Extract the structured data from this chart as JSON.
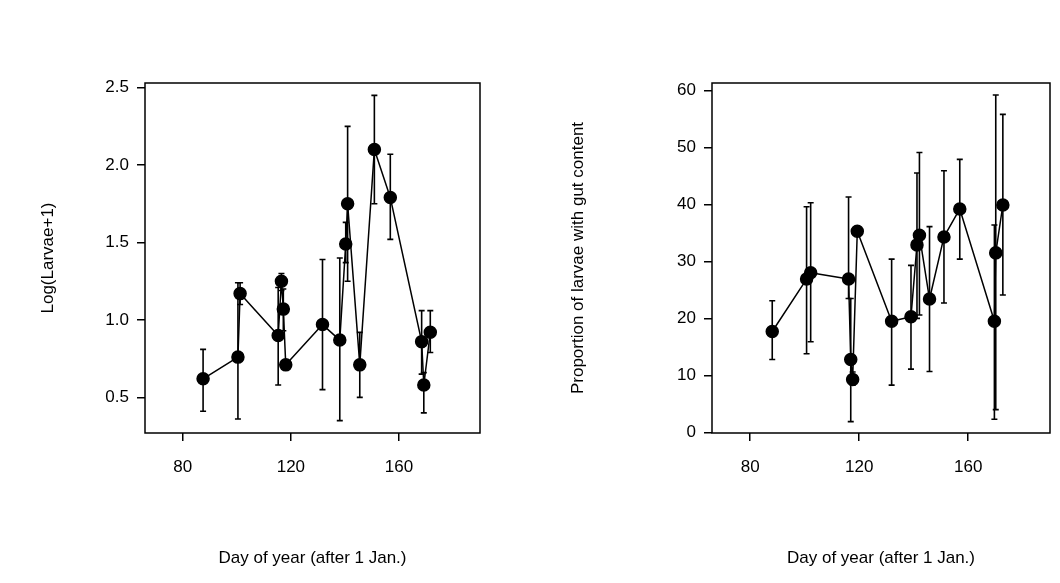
{
  "chart_data": [
    {
      "type": "line",
      "xlabel": "Day of year (after 1 Jan.)",
      "ylabel": "Log(Larvae+1)",
      "xlim": [
        66,
        190
      ],
      "xticks": [
        80,
        120,
        160
      ],
      "ylim": [
        0.27,
        2.53
      ],
      "yticks": [
        {
          "value": 0.5,
          "label": "0.5"
        },
        {
          "value": 1,
          "label": "1.0"
        },
        {
          "value": 1.5,
          "label": "1.5"
        },
        {
          "value": 2,
          "label": "2.0"
        },
        {
          "value": 2.5,
          "label": "2.5"
        }
      ],
      "grid": false,
      "legend": false,
      "marker": "circle",
      "line_style": "solid",
      "series": [
        {
          "color": "#000000",
          "x": [
            87.5,
            100.4,
            101.2,
            115.3,
            116.5,
            117.2,
            118.1,
            131.7,
            138.1,
            140.3,
            141,
            145.5,
            150.9,
            156.8,
            168.4,
            169.2,
            171.6
          ],
          "values": [
            0.62,
            0.76,
            1.17,
            0.9,
            1.25,
            1.07,
            0.71,
            0.97,
            0.87,
            1.49,
            1.75,
            0.71,
            2.1,
            1.79,
            0.86,
            0.58,
            0.92
          ],
          "errors": [
            [
              0.41,
              0.81
            ],
            [
              0.36,
              1.24
            ],
            [
              1.1,
              1.24
            ],
            [
              0.58,
              1.21
            ],
            [
              1.19,
              1.3
            ],
            [
              0.93,
              1.2
            ],
            null,
            [
              0.55,
              1.39
            ],
            [
              0.35,
              1.4
            ],
            [
              1.37,
              1.63
            ],
            [
              1.25,
              2.25
            ],
            [
              0.5,
              0.92
            ],
            [
              1.75,
              2.45
            ],
            [
              1.52,
              2.07
            ],
            [
              0.65,
              1.06
            ],
            [
              0.4,
              0.66
            ],
            [
              0.79,
              1.06
            ]
          ]
        }
      ]
    },
    {
      "type": "line",
      "xlabel": "Day of year (after 1 Jan.)",
      "ylabel": "Proportion of larvae with gut content",
      "xlim": [
        66,
        190
      ],
      "xticks": [
        80,
        120,
        160
      ],
      "ylim": [
        -0.1,
        61.3
      ],
      "yticks": [
        0,
        10,
        20,
        30,
        40,
        50,
        60
      ],
      "grid": false,
      "legend": false,
      "marker": "circle",
      "line_style": "solid",
      "series": [
        {
          "color": "#000000",
          "x": [
            88.1,
            100.7,
            102.2,
            116.1,
            116.9,
            117.6,
            119.3,
            131.9,
            139,
            141.2,
            142.1,
            145.8,
            151.1,
            156.9,
            169.6,
            170.1,
            172.7
          ],
          "values": [
            17.7,
            26.9,
            28,
            26.9,
            12.8,
            9.3,
            35.3,
            19.5,
            20.3,
            32.9,
            34.6,
            23.4,
            34.3,
            39.2,
            19.5,
            31.5,
            39.9
          ],
          "errors": [
            [
              12.8,
              23.1
            ],
            [
              13.8,
              39.6
            ],
            [
              15.9,
              40.3
            ],
            [
              23.5,
              41.3
            ],
            [
              1.9,
              23.5
            ],
            [
              8.3,
              10.6
            ],
            null,
            [
              8.3,
              30.4
            ],
            [
              11.1,
              29.3
            ],
            [
              20,
              45.5
            ],
            [
              20.6,
              49.1
            ],
            [
              10.7,
              36.1
            ],
            [
              22.7,
              45.9
            ],
            [
              30.4,
              47.9
            ],
            [
              2.3,
              36.4
            ],
            [
              4,
              59.2
            ],
            [
              24.1,
              55.8
            ]
          ]
        }
      ]
    }
  ]
}
